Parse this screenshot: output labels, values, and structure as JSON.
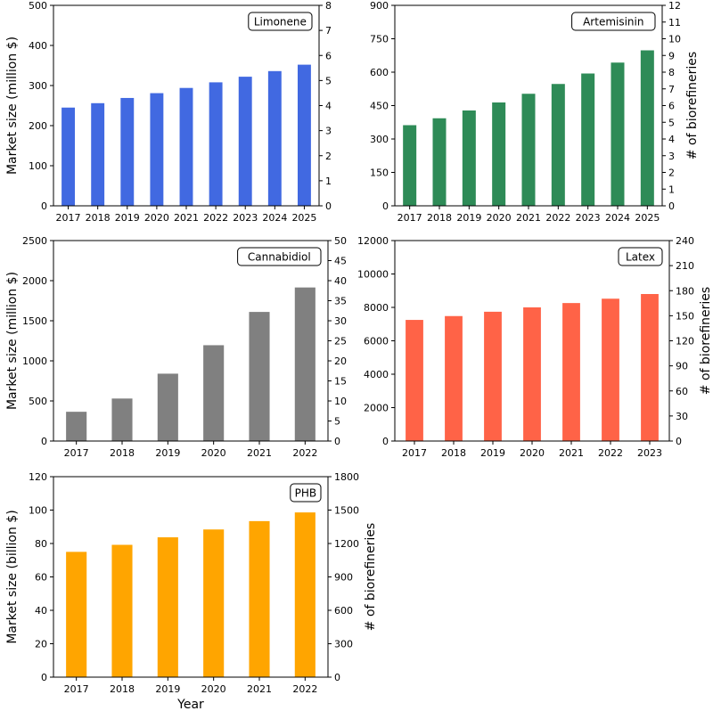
{
  "colors": {
    "Limonene": "#4169e1",
    "Artemisinin": "#2e8b57",
    "Cannabidiol": "#808080",
    "Latex": "#ff6347",
    "PHB": "#ffa500"
  },
  "chart_data": [
    {
      "type": "bar",
      "label": "Limonene",
      "categories": [
        "2017",
        "2018",
        "2019",
        "2020",
        "2021",
        "2022",
        "2023",
        "2024",
        "2025"
      ],
      "values": [
        245,
        256,
        269,
        281,
        294,
        308,
        322,
        336,
        352
      ],
      "ylabel": "Market size (million $)",
      "ylim": [
        0,
        500
      ],
      "yticks": [
        0,
        100,
        200,
        300,
        400,
        500
      ],
      "y2label": "",
      "y2lim": [
        0,
        8
      ],
      "y2ticks": [
        0,
        1,
        2,
        3,
        4,
        5,
        6,
        7,
        8
      ],
      "xlabel": ""
    },
    {
      "type": "bar",
      "label": "Artemisinin",
      "categories": [
        "2017",
        "2018",
        "2019",
        "2020",
        "2021",
        "2022",
        "2023",
        "2024",
        "2025"
      ],
      "values": [
        362,
        393,
        428,
        464,
        503,
        547,
        594,
        643,
        698
      ],
      "ylabel": "",
      "ylim": [
        0,
        900
      ],
      "yticks": [
        0,
        150,
        300,
        450,
        600,
        750,
        900
      ],
      "y2label": "# of biorefineries",
      "y2lim": [
        0,
        12
      ],
      "y2ticks": [
        0,
        1,
        2,
        3,
        4,
        5,
        6,
        7,
        8,
        9,
        10,
        11,
        12
      ],
      "xlabel": ""
    },
    {
      "type": "bar",
      "label": "Cannabidiol",
      "categories": [
        "2017",
        "2018",
        "2019",
        "2020",
        "2021",
        "2022"
      ],
      "values": [
        365,
        530,
        840,
        1195,
        1610,
        1915
      ],
      "ylabel": "Market size (million $)",
      "ylim": [
        0,
        2500
      ],
      "yticks": [
        0,
        500,
        1000,
        1500,
        2000,
        2500
      ],
      "y2label": "",
      "y2lim": [
        0,
        50
      ],
      "y2ticks": [
        0,
        5,
        10,
        15,
        20,
        25,
        30,
        35,
        40,
        45,
        50
      ],
      "xlabel": ""
    },
    {
      "type": "bar",
      "label": "Latex",
      "categories": [
        "2017",
        "2018",
        "2019",
        "2020",
        "2021",
        "2022",
        "2023"
      ],
      "values": [
        7250,
        7480,
        7740,
        8000,
        8260,
        8520,
        8800
      ],
      "ylabel": "",
      "ylim": [
        0,
        12000
      ],
      "yticks": [
        0,
        2000,
        4000,
        6000,
        8000,
        10000,
        12000
      ],
      "y2label": "# of biorefineries",
      "y2lim": [
        0,
        240
      ],
      "y2ticks": [
        0,
        30,
        60,
        90,
        120,
        150,
        180,
        210,
        240
      ],
      "xlabel": ""
    },
    {
      "type": "bar",
      "label": "PHB",
      "categories": [
        "2017",
        "2018",
        "2019",
        "2020",
        "2021",
        "2022"
      ],
      "values": [
        75,
        79.2,
        83.7,
        88.4,
        93.4,
        98.6
      ],
      "ylabel": "Market size (billion $)",
      "ylim": [
        0,
        120
      ],
      "yticks": [
        0,
        20,
        40,
        60,
        80,
        100,
        120
      ],
      "y2label": "# of biorefineries",
      "y2lim": [
        0,
        1800
      ],
      "y2ticks": [
        0,
        300,
        600,
        900,
        1200,
        1500,
        1800
      ],
      "xlabel": "Year"
    }
  ]
}
